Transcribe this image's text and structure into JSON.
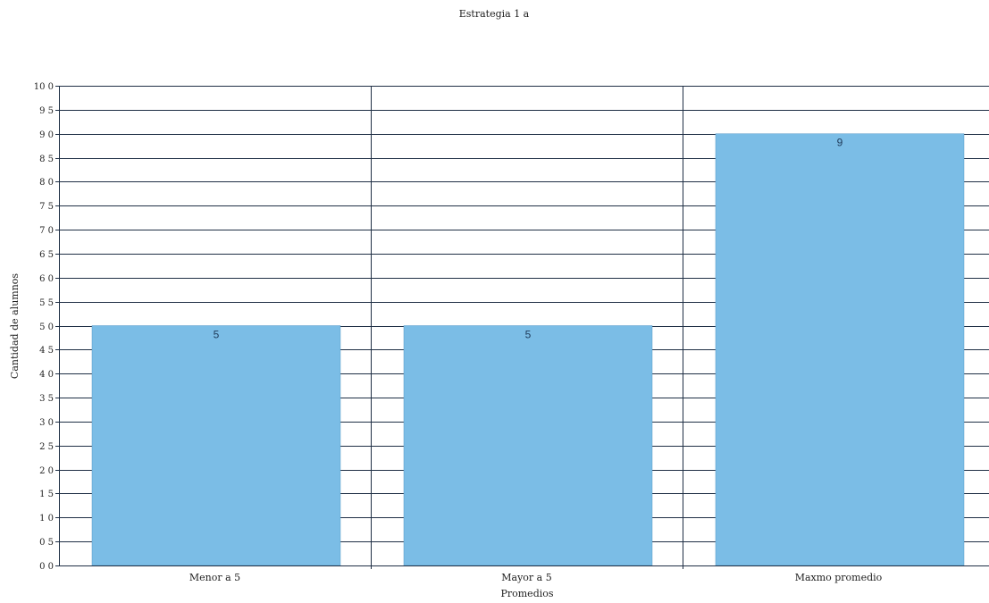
{
  "chart_data": {
    "type": "bar",
    "title": "Estrategia 1 a",
    "xlabel": "Promedios",
    "ylabel": "Cantidad de alumnos",
    "categories": [
      "Menor a 5",
      "Mayor a 5",
      "Maxmo promedio"
    ],
    "values": [
      5,
      5,
      9
    ],
    "data_labels": [
      "5",
      "5",
      "9"
    ],
    "ylim": [
      0,
      10
    ],
    "ytick_step": 0.5,
    "ytick_labels": [
      "0 0",
      "0 5",
      "1 0",
      "1 5",
      "2 0",
      "2 5",
      "3 0",
      "3 5",
      "4 0",
      "4 5",
      "5 0",
      "5 5",
      "6 0",
      "6 5",
      "7 0",
      "7 5",
      "8 0",
      "8 5",
      "9 0",
      "9 5",
      "10 0"
    ],
    "grid": true,
    "legend": "none",
    "bar_color": "#7bbde6",
    "bar_edge_color": "#5a9cc8",
    "grid_color": "#1f2f45"
  }
}
